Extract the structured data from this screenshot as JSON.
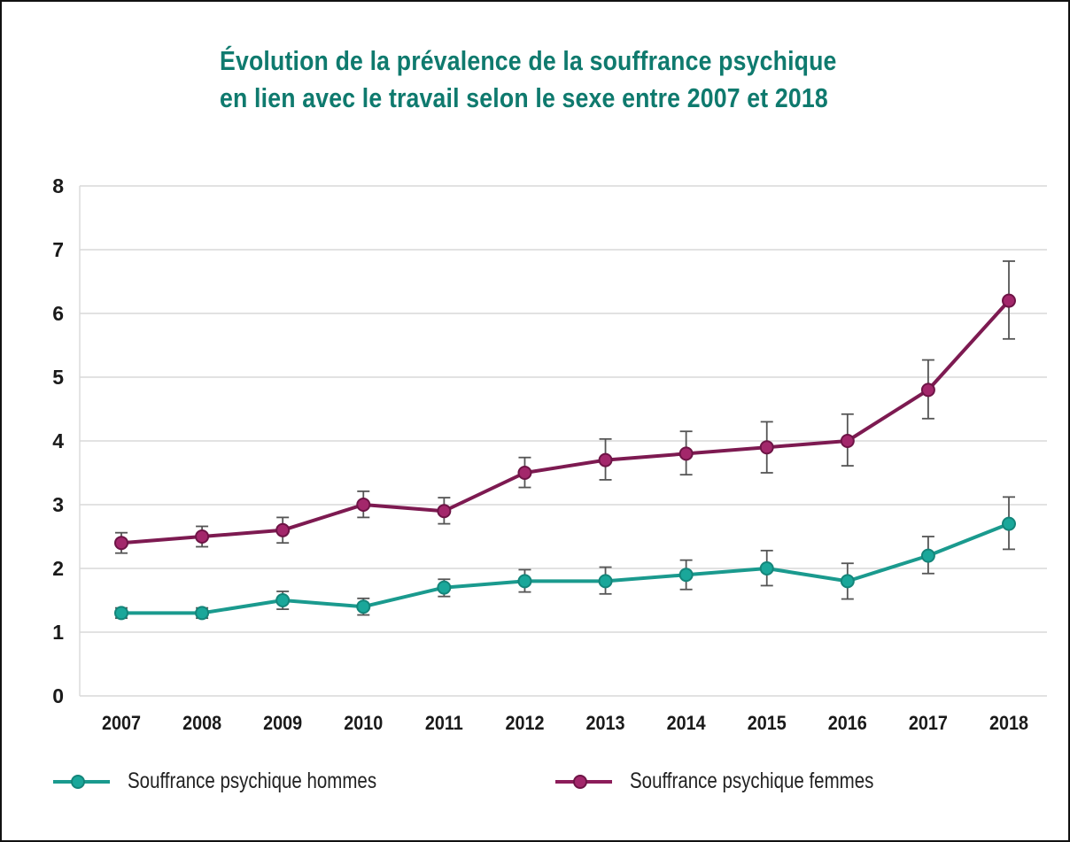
{
  "chart_data": {
    "type": "line",
    "title": "Évolution de la prévalence de la souffrance psychique\nen lien avec le travail selon le sexe entre 2007 et 2018",
    "title_lines": [
      "Évolution de la prévalence de la souffrance psychique",
      "en lien avec le travail selon le sexe entre 2007 et 2018"
    ],
    "xlabel": "",
    "ylabel": "",
    "x": [
      "2007",
      "2008",
      "2009",
      "2010",
      "2011",
      "2012",
      "2013",
      "2014",
      "2015",
      "2016",
      "2017",
      "2018"
    ],
    "ylim": [
      0,
      8
    ],
    "yticks": [
      "0",
      "1",
      "2",
      "3",
      "4",
      "5",
      "6",
      "7",
      "8"
    ],
    "grid": true,
    "legend_position": "bottom",
    "series": [
      {
        "name": "Souffrance psychique hommes",
        "color": "#1a9a8e",
        "values": [
          1.3,
          1.3,
          1.5,
          1.4,
          1.7,
          1.8,
          1.8,
          1.9,
          2.0,
          1.8,
          2.2,
          2.7
        ],
        "error_low": [
          1.22,
          1.22,
          1.36,
          1.27,
          1.56,
          1.63,
          1.6,
          1.67,
          1.73,
          1.52,
          1.92,
          2.3
        ],
        "error_high": [
          1.38,
          1.38,
          1.64,
          1.53,
          1.83,
          1.98,
          2.02,
          2.13,
          2.28,
          2.08,
          2.5,
          3.12
        ]
      },
      {
        "name": "Souffrance psychique femmes",
        "color": "#8c1d5a",
        "values": [
          2.4,
          2.5,
          2.6,
          3.0,
          2.9,
          3.5,
          3.7,
          3.8,
          3.9,
          4.0,
          4.8,
          6.2
        ],
        "error_low": [
          2.24,
          2.34,
          2.4,
          2.8,
          2.7,
          3.27,
          3.39,
          3.47,
          3.5,
          3.61,
          4.35,
          5.6
        ],
        "error_high": [
          2.56,
          2.66,
          2.8,
          3.21,
          3.11,
          3.74,
          4.03,
          4.15,
          4.3,
          4.42,
          5.27,
          6.82
        ]
      }
    ]
  }
}
